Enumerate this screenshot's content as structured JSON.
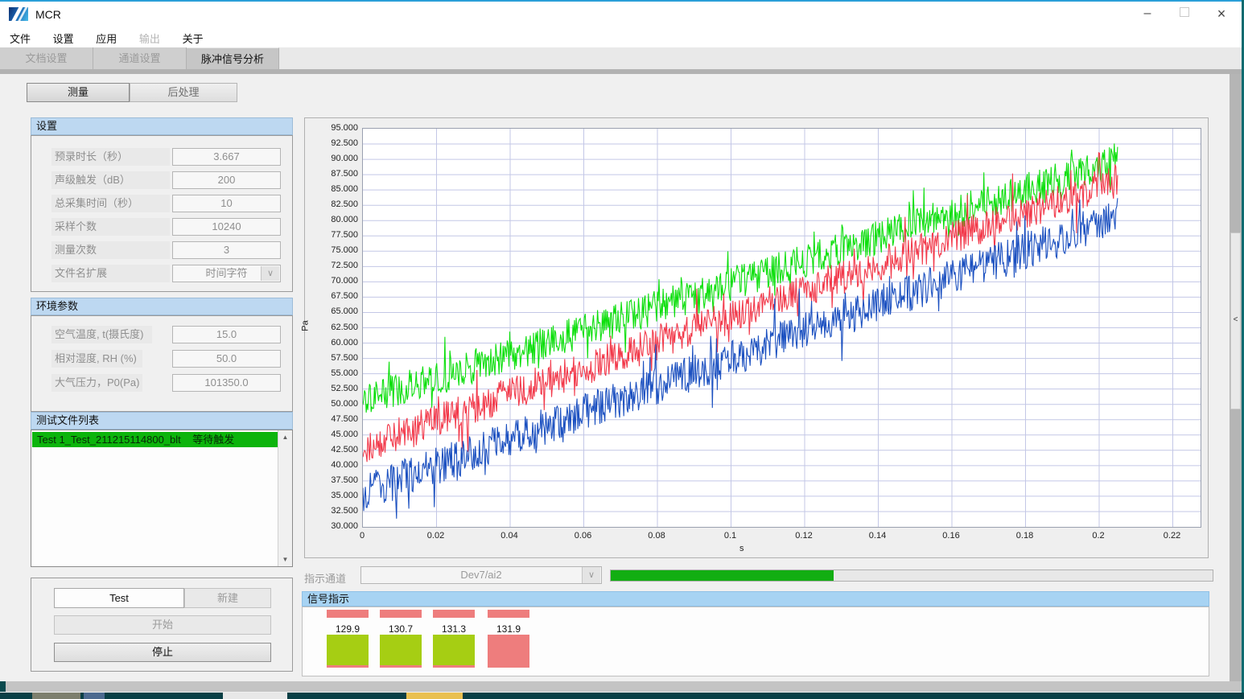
{
  "window": {
    "title": "MCR",
    "controls": {
      "minimize": "–",
      "maximize": "",
      "close": "×"
    }
  },
  "menu": {
    "items": [
      {
        "label": "文件",
        "enabled": true
      },
      {
        "label": "设置",
        "enabled": true
      },
      {
        "label": "应用",
        "enabled": true
      },
      {
        "label": "输出",
        "enabled": false
      },
      {
        "label": "关于",
        "enabled": true
      }
    ]
  },
  "tabs": [
    {
      "label": "文档设置",
      "active": false
    },
    {
      "label": "通道设置",
      "active": false
    },
    {
      "label": "脉冲信号分析",
      "active": true
    }
  ],
  "subtabs": [
    {
      "label": "测量",
      "selected": true
    },
    {
      "label": "后处理",
      "selected": false
    }
  ],
  "settings": {
    "header": "设置",
    "rows": [
      {
        "label": "预录时长（秒）",
        "value": "3.667"
      },
      {
        "label": "声级触发（dB）",
        "value": "200"
      },
      {
        "label": "总采集时间（秒）",
        "value": "10"
      },
      {
        "label": "采样个数",
        "value": "10240"
      },
      {
        "label": "测量次数",
        "value": "3"
      },
      {
        "label": "文件名扩展",
        "value": "时间字符",
        "type": "dropdown"
      }
    ]
  },
  "environment": {
    "header": "环境参数",
    "rows": [
      {
        "label": "空气温度, t(摄氏度)",
        "value": "15.0"
      },
      {
        "label": "相对湿度, RH (%)",
        "value": "50.0"
      },
      {
        "label": "大气压力，P0(Pa)",
        "value": "101350.0"
      }
    ]
  },
  "file_list": {
    "header": "测试文件列表",
    "items": [
      {
        "name": "Test 1_Test_211215114800_blt",
        "status": "等待触发",
        "highlight_color": "#0cb40c"
      }
    ]
  },
  "controls": {
    "test_name": "Test",
    "new_label": "新建",
    "start_label": "开始",
    "stop_label": "停止"
  },
  "indicator": {
    "label": "指示通道",
    "channel": "Dev7/ai2",
    "progress_percent": 37,
    "progress_color": "#12ae12"
  },
  "signal_panel": {
    "header": "信号指示",
    "top_bar_color": "#ee7d7d",
    "items": [
      {
        "value": "129.9",
        "state_color": "#a6ce13"
      },
      {
        "value": "130.7",
        "state_color": "#a6ce13"
      },
      {
        "value": "131.3",
        "state_color": "#a6ce13"
      },
      {
        "value": "131.9",
        "state_color": "#ee7d7d"
      }
    ]
  },
  "icons": {
    "chevron_down": "∨",
    "scroll_up": "▲",
    "scroll_down": "▼",
    "collapse_left": "<"
  },
  "chart_data": {
    "type": "line",
    "title": "",
    "xlabel": "s",
    "ylabel": "Pa",
    "xlim": [
      0,
      0.2275
    ],
    "ylim": [
      30,
      95
    ],
    "grid": true,
    "x_ticks": [
      "0",
      "0.02",
      "0.04",
      "0.06",
      "0.08",
      "0.1",
      "0.12",
      "0.14",
      "0.16",
      "0.18",
      "0.2",
      "0.22"
    ],
    "y_ticks": [
      "95.000",
      "92.500",
      "90.000",
      "87.500",
      "85.000",
      "82.500",
      "80.000",
      "77.500",
      "75.000",
      "72.500",
      "70.000",
      "67.500",
      "65.000",
      "62.500",
      "60.000",
      "57.500",
      "55.000",
      "52.500",
      "50.000",
      "47.500",
      "45.000",
      "42.500",
      "40.000",
      "37.500",
      "35.000",
      "32.500",
      "30.000"
    ],
    "grid_color": "#c3c7e6",
    "series": [
      {
        "name": "signal-green",
        "color": "#0ddf0d",
        "x_start": 0,
        "x_end": 0.205,
        "y_start": 50.5,
        "y_end": 89.8,
        "noise_pp": 5.6
      },
      {
        "name": "signal-red",
        "color": "#f2394a",
        "x_start": 0,
        "x_end": 0.205,
        "y_start": 43.0,
        "y_end": 86.6,
        "noise_pp": 5.6
      },
      {
        "name": "signal-blue",
        "color": "#1b50c0",
        "x_start": 0,
        "x_end": 0.205,
        "y_start": 35.5,
        "y_end": 80.6,
        "noise_pp": 6.2
      }
    ]
  }
}
